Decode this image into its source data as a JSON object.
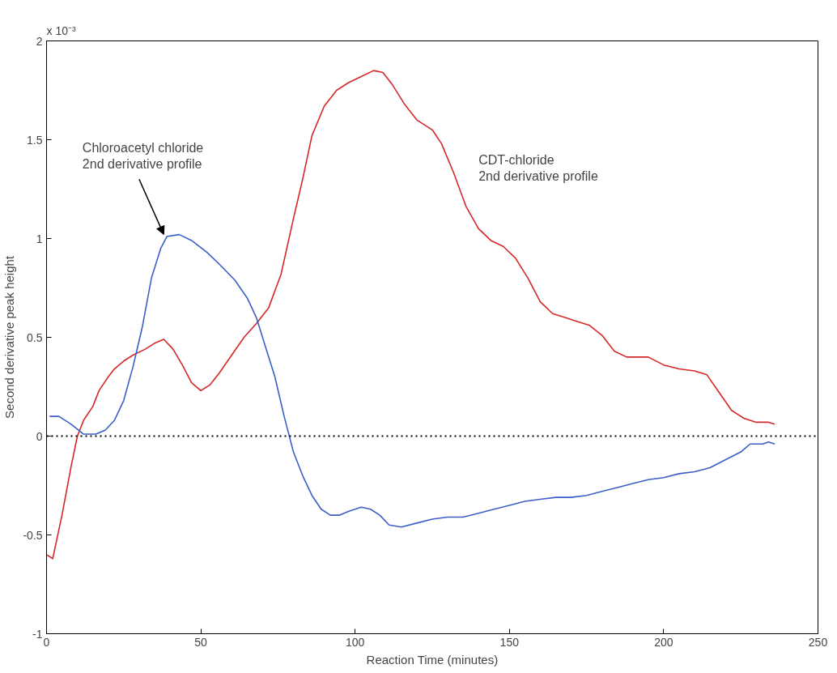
{
  "chart_data": {
    "type": "line",
    "xlabel": "Reaction Time (minutes)",
    "ylabel": "Second derivative peak height",
    "xlim": [
      0,
      250
    ],
    "xticks": [
      0,
      50,
      100,
      150,
      200,
      250
    ],
    "ylim": [
      -1,
      2
    ],
    "yticks": [
      -1,
      -0.5,
      0,
      0.5,
      1,
      1.5,
      2
    ],
    "grid": false,
    "series": [
      {
        "color": "#d62728",
        "x": [
          0,
          2,
          5,
          8,
          10,
          12,
          15,
          17,
          20,
          22,
          25,
          28,
          32,
          35,
          38,
          41,
          44,
          47,
          50,
          53,
          56,
          60,
          64,
          68,
          72,
          76,
          80,
          83,
          86,
          90,
          94,
          98,
          102,
          106,
          109,
          112,
          116,
          120,
          125,
          128,
          132,
          136,
          140,
          144,
          148,
          152,
          156,
          160,
          164,
          168,
          172,
          176,
          180,
          184,
          188,
          195,
          200,
          205,
          210,
          214,
          218,
          222,
          226,
          230,
          234,
          236
        ],
        "values": [
          -0.6,
          -0.62,
          -0.4,
          -0.15,
          0.0,
          0.08,
          0.15,
          0.23,
          0.3,
          0.34,
          0.38,
          0.41,
          0.44,
          0.47,
          0.49,
          0.44,
          0.36,
          0.27,
          0.23,
          0.26,
          0.32,
          0.41,
          0.5,
          0.57,
          0.65,
          0.82,
          1.1,
          1.3,
          1.52,
          1.67,
          1.75,
          1.79,
          1.82,
          1.85,
          1.84,
          1.78,
          1.68,
          1.6,
          1.55,
          1.48,
          1.33,
          1.16,
          1.05,
          0.99,
          0.96,
          0.9,
          0.8,
          0.68,
          0.62,
          0.6,
          0.58,
          0.56,
          0.51,
          0.43,
          0.4,
          0.4,
          0.36,
          0.34,
          0.33,
          0.31,
          0.22,
          0.13,
          0.09,
          0.07,
          0.07,
          0.06
        ]
      },
      {
        "color": "#3a5fc8",
        "x": [
          1,
          4,
          8,
          12,
          16,
          19,
          22,
          25,
          28,
          31,
          34,
          37,
          39,
          43,
          47,
          52,
          56,
          61,
          65,
          68,
          71,
          74,
          77,
          80,
          83,
          86,
          89,
          92,
          95,
          98,
          102,
          105,
          108,
          111,
          115,
          120,
          125,
          130,
          135,
          140,
          145,
          150,
          155,
          160,
          165,
          170,
          175,
          180,
          185,
          190,
          195,
          200,
          205,
          210,
          215,
          220,
          225,
          228,
          232,
          234,
          236
        ],
        "values": [
          0.1,
          0.1,
          0.06,
          0.01,
          0.01,
          0.03,
          0.08,
          0.18,
          0.35,
          0.55,
          0.8,
          0.95,
          1.01,
          1.02,
          0.99,
          0.93,
          0.87,
          0.79,
          0.7,
          0.6,
          0.45,
          0.3,
          0.1,
          -0.08,
          -0.2,
          -0.3,
          -0.37,
          -0.4,
          -0.4,
          -0.38,
          -0.36,
          -0.37,
          -0.4,
          -0.45,
          -0.46,
          -0.44,
          -0.42,
          -0.41,
          -0.41,
          -0.39,
          -0.37,
          -0.35,
          -0.33,
          -0.32,
          -0.31,
          -0.31,
          -0.3,
          -0.28,
          -0.26,
          -0.24,
          -0.22,
          -0.21,
          -0.19,
          -0.18,
          -0.16,
          -0.12,
          -0.08,
          -0.04,
          -0.04,
          -0.03,
          -0.04
        ]
      }
    ],
    "ref_lines": [
      {
        "axis": "y",
        "value": 0,
        "color": "#000000",
        "line_style": "dotted"
      }
    ],
    "annotations": [
      "x 10⁻³",
      {
        "text": "Chloroacetyl chloride\n2nd derivative profile",
        "x": 38,
        "y": 1.02
      },
      "CDT-chloride\n2nd derivative profile"
    ]
  }
}
